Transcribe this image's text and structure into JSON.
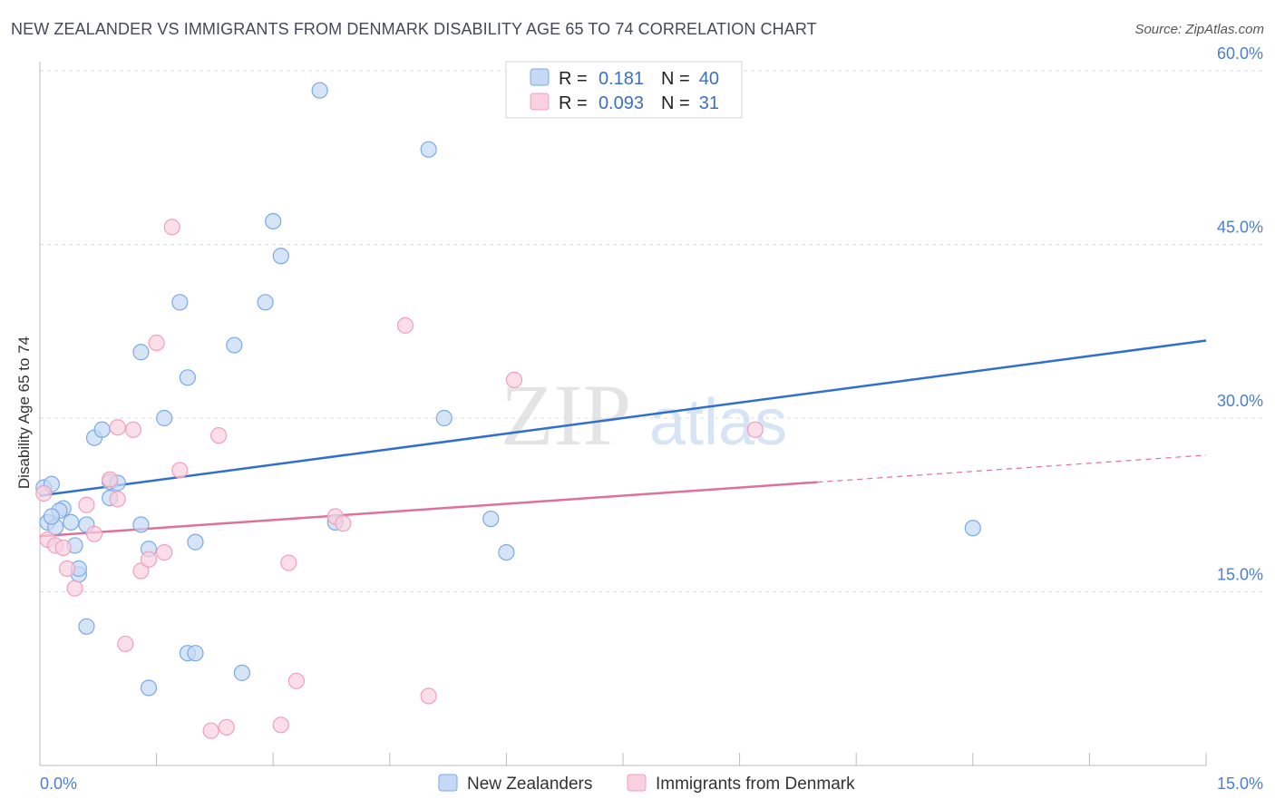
{
  "chart_data": {
    "type": "scatter",
    "title": "NEW ZEALANDER VS IMMIGRANTS FROM DENMARK DISABILITY AGE 65 TO 74 CORRELATION CHART",
    "source": "Source: ZipAtlas.com",
    "xlabel": "",
    "ylabel": "Disability Age 65 to 74",
    "xlim": [
      0,
      15
    ],
    "ylim": [
      0,
      60
    ],
    "x_tick_labels": [
      "0.0%",
      "15.0%"
    ],
    "y_ticks": [
      15,
      30,
      45,
      60
    ],
    "y_tick_labels": [
      "15.0%",
      "30.0%",
      "45.0%",
      "60.0%"
    ],
    "watermark": {
      "zip": "ZIP",
      "atlas": "atlas"
    },
    "legend": {
      "rows": [
        {
          "r_label": "R =",
          "r_value": "0.181",
          "n_label": "N =",
          "n_value": "40"
        },
        {
          "r_label": "R =",
          "r_value": "0.093",
          "n_label": "N =",
          "n_value": "31"
        }
      ]
    },
    "series": [
      {
        "name": "New Zealanders",
        "color": "#7aaae8",
        "fill": "#c5d9f5",
        "line_color": "#2f6fcf",
        "trend": {
          "x0": 0,
          "y0": 23.3,
          "x1": 15,
          "y1": 36.7,
          "solid_to": 15
        },
        "points": [
          [
            0.05,
            24.0
          ],
          [
            0.15,
            24.3
          ],
          [
            0.1,
            21.0
          ],
          [
            0.3,
            22.2
          ],
          [
            0.25,
            22.0
          ],
          [
            0.4,
            21.0
          ],
          [
            0.45,
            19.0
          ],
          [
            0.6,
            20.8
          ],
          [
            0.5,
            16.5
          ],
          [
            0.7,
            28.3
          ],
          [
            0.8,
            29.0
          ],
          [
            0.9,
            24.5
          ],
          [
            1.0,
            24.4
          ],
          [
            0.9,
            23.1
          ],
          [
            1.3,
            20.8
          ],
          [
            1.3,
            35.7
          ],
          [
            1.4,
            18.7
          ],
          [
            1.6,
            30.0
          ],
          [
            1.8,
            40.0
          ],
          [
            1.9,
            33.5
          ],
          [
            2.0,
            19.3
          ],
          [
            1.9,
            9.7
          ],
          [
            2.0,
            9.7
          ],
          [
            2.5,
            36.3
          ],
          [
            2.6,
            8.0
          ],
          [
            2.9,
            40.0
          ],
          [
            3.0,
            47.0
          ],
          [
            3.1,
            44.0
          ],
          [
            3.6,
            58.3
          ],
          [
            3.8,
            21.0
          ],
          [
            5.0,
            53.2
          ],
          [
            5.2,
            30.0
          ],
          [
            5.8,
            21.3
          ],
          [
            6.0,
            18.4
          ],
          [
            12.0,
            20.5
          ],
          [
            0.5,
            17.0
          ],
          [
            0.6,
            12.0
          ],
          [
            1.4,
            6.7
          ],
          [
            0.2,
            20.6
          ],
          [
            0.15,
            21.5
          ]
        ]
      },
      {
        "name": "Immigrants from Denmark",
        "color": "#f0a0bc",
        "fill": "#f9d0de",
        "line_color": "#e0709a",
        "trend": {
          "x0": 0,
          "y0": 19.8,
          "x1": 15,
          "y1": 26.8,
          "solid_to": 10
        },
        "points": [
          [
            0.05,
            23.5
          ],
          [
            0.1,
            19.5
          ],
          [
            0.2,
            19.0
          ],
          [
            0.3,
            18.8
          ],
          [
            0.35,
            17.0
          ],
          [
            0.45,
            15.3
          ],
          [
            0.6,
            22.5
          ],
          [
            0.7,
            20.0
          ],
          [
            0.9,
            24.7
          ],
          [
            1.0,
            23.0
          ],
          [
            1.0,
            29.2
          ],
          [
            1.2,
            29.0
          ],
          [
            1.3,
            16.8
          ],
          [
            1.4,
            17.8
          ],
          [
            1.5,
            36.5
          ],
          [
            1.6,
            18.4
          ],
          [
            1.7,
            46.5
          ],
          [
            1.8,
            25.5
          ],
          [
            2.3,
            28.5
          ],
          [
            2.2,
            3.0
          ],
          [
            2.4,
            3.3
          ],
          [
            3.1,
            3.5
          ],
          [
            3.2,
            17.5
          ],
          [
            3.3,
            7.3
          ],
          [
            3.8,
            21.5
          ],
          [
            3.9,
            20.9
          ],
          [
            4.7,
            38.0
          ],
          [
            5.0,
            6.0
          ],
          [
            6.1,
            33.3
          ],
          [
            9.2,
            29.0
          ],
          [
            1.1,
            10.5
          ]
        ]
      }
    ]
  }
}
